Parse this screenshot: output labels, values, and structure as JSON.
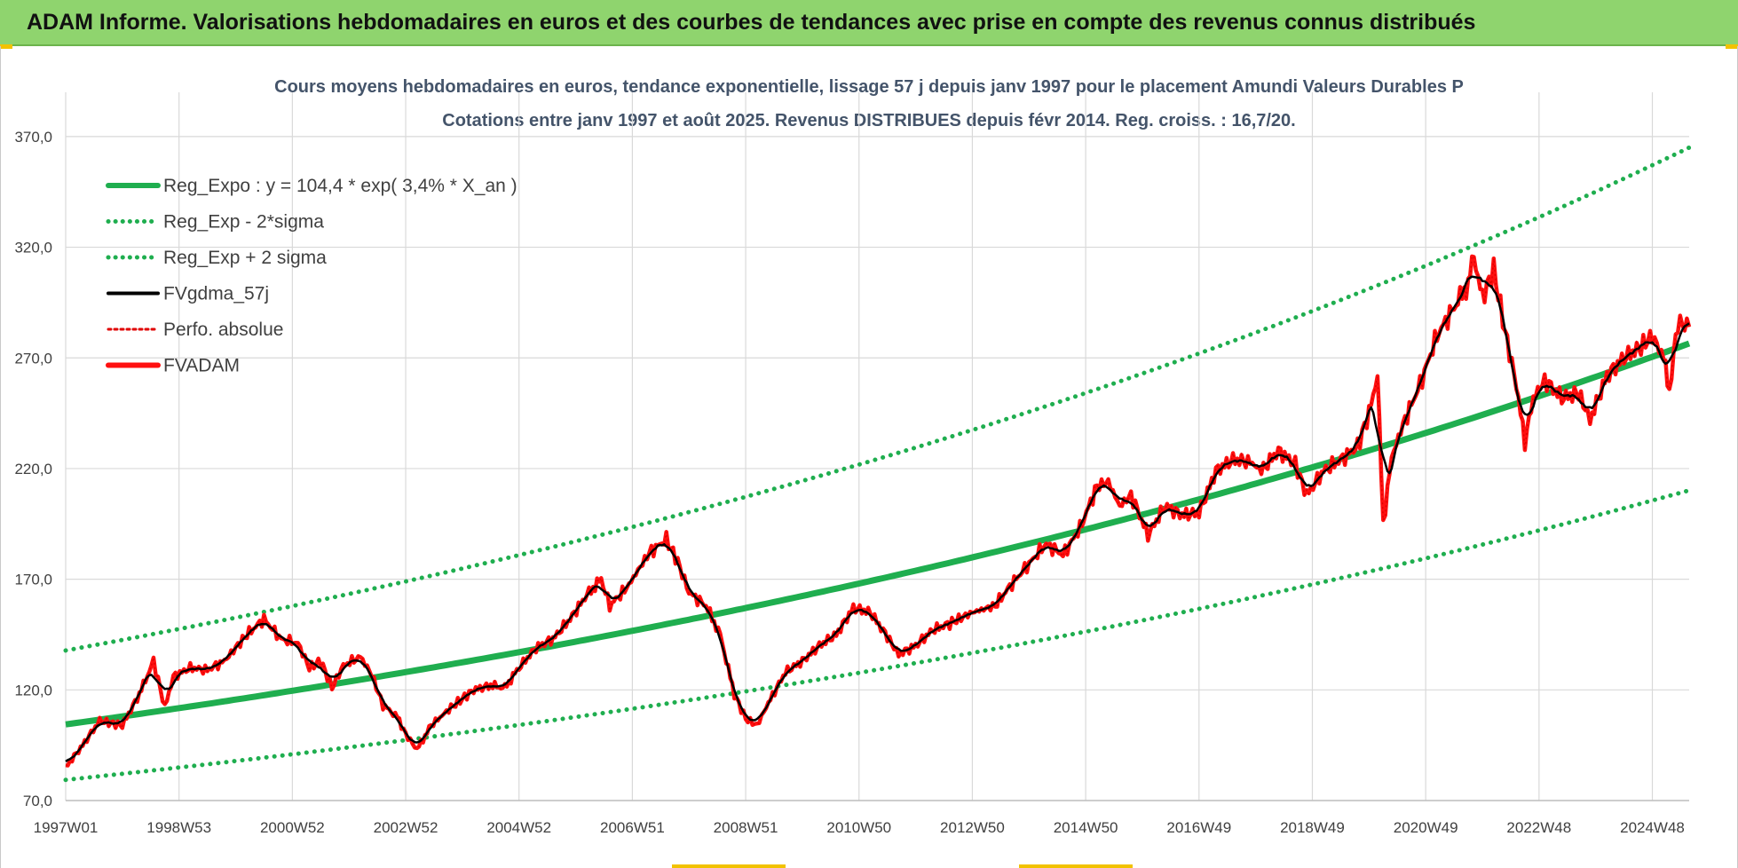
{
  "banner": {
    "title": "ADAM Informe. Valorisations hebdomadaires en euros et des courbes de tendances avec prise en compte des revenus connus distribués"
  },
  "colors": {
    "banner_bg": "#8fd46e",
    "regression": "#1fae4f",
    "sigma_bands": "#1fae4f",
    "smoothed": "#000000",
    "performance": "#e00000",
    "price": "#ff1010",
    "grid": "#d9d9d9"
  },
  "chart_data": {
    "type": "line",
    "title_line1": "Cours moyens hebdomadaires en euros, tendance exponentielle, lissage 57 j depuis janv 1997 pour le placement Amundi Valeurs Durables P",
    "title_line2": "Cotations entre janv 1997 et août 2025.  Revenus DISTRIBUES depuis févr 2014.  Reg. croiss. : 16,7/20.",
    "xlabel": "",
    "ylabel": "",
    "x_range_years": [
      1997.0,
      2025.65
    ],
    "ylim": [
      70,
      390
    ],
    "y_ticks": [
      70,
      120,
      170,
      220,
      270,
      320,
      370
    ],
    "y_tick_labels": [
      "70,0",
      "120,0",
      "170,0",
      "220,0",
      "270,0",
      "320,0",
      "370,0"
    ],
    "x_tick_labels": [
      "1997W01",
      "1998W53",
      "2000W52",
      "2002W52",
      "2004W52",
      "2006W51",
      "2008W51",
      "2010W50",
      "2012W50",
      "2014W50",
      "2016W49",
      "2018W49",
      "2020W49",
      "2022W48",
      "2024W48"
    ],
    "x_tick_years": [
      1997.0,
      1999.0,
      2001.0,
      2003.0,
      2005.0,
      2007.0,
      2009.0,
      2011.0,
      2013.0,
      2015.0,
      2017.0,
      2019.0,
      2021.0,
      2023.0,
      2025.0
    ],
    "grid": true,
    "legend_position": "top-left",
    "regression": {
      "a": 104.4,
      "rate": 0.034,
      "minus_2sigma_factor": 0.76,
      "plus_2sigma_factor": 1.32
    },
    "series": [
      {
        "name": "Reg_Expo : y = 104,4 * exp( 3,4% *  X_an )",
        "style": "solid-thick",
        "color": "#1fae4f"
      },
      {
        "name": "Reg_Exp - 2*sigma",
        "style": "dotted",
        "color": "#1fae4f"
      },
      {
        "name": "Reg_Exp + 2 sigma",
        "style": "dotted",
        "color": "#1fae4f"
      },
      {
        "name": "FVgdma_57j",
        "style": "solid",
        "color": "#000000"
      },
      {
        "name": "Perfo. absolue",
        "style": "dotted",
        "color": "#e00000"
      },
      {
        "name": "FVADAM",
        "style": "solid-thick",
        "color": "#ff1010"
      }
    ],
    "fvadam_points": [
      [
        1997.0,
        85
      ],
      [
        1997.3,
        95
      ],
      [
        1997.6,
        106
      ],
      [
        1998.0,
        104
      ],
      [
        1998.3,
        118
      ],
      [
        1998.55,
        133
      ],
      [
        1998.75,
        112
      ],
      [
        1998.9,
        126
      ],
      [
        1999.2,
        130
      ],
      [
        1999.5,
        129
      ],
      [
        1999.8,
        133
      ],
      [
        2000.2,
        145
      ],
      [
        2000.5,
        152
      ],
      [
        2000.8,
        143
      ],
      [
        2001.1,
        141
      ],
      [
        2001.3,
        130
      ],
      [
        2001.5,
        133
      ],
      [
        2001.7,
        121
      ],
      [
        2001.9,
        131
      ],
      [
        2002.2,
        135
      ],
      [
        2002.4,
        127
      ],
      [
        2002.6,
        113
      ],
      [
        2002.85,
        108
      ],
      [
        2003.0,
        100
      ],
      [
        2003.2,
        93
      ],
      [
        2003.45,
        104
      ],
      [
        2003.8,
        112
      ],
      [
        2004.2,
        120
      ],
      [
        2004.5,
        122
      ],
      [
        2004.75,
        121
      ],
      [
        2005.0,
        130
      ],
      [
        2005.3,
        139
      ],
      [
        2005.6,
        143
      ],
      [
        2005.9,
        152
      ],
      [
        2006.2,
        163
      ],
      [
        2006.45,
        170
      ],
      [
        2006.6,
        158
      ],
      [
        2006.9,
        166
      ],
      [
        2007.3,
        182
      ],
      [
        2007.6,
        188
      ],
      [
        2007.8,
        178
      ],
      [
        2008.0,
        164
      ],
      [
        2008.3,
        158
      ],
      [
        2008.55,
        145
      ],
      [
        2008.8,
        118
      ],
      [
        2009.0,
        107
      ],
      [
        2009.2,
        104
      ],
      [
        2009.4,
        114
      ],
      [
        2009.7,
        128
      ],
      [
        2010.0,
        133
      ],
      [
        2010.3,
        140
      ],
      [
        2010.6,
        145
      ],
      [
        2010.9,
        157
      ],
      [
        2011.2,
        155
      ],
      [
        2011.5,
        144
      ],
      [
        2011.7,
        136
      ],
      [
        2012.0,
        140
      ],
      [
        2012.3,
        147
      ],
      [
        2012.6,
        150
      ],
      [
        2013.0,
        155
      ],
      [
        2013.4,
        158
      ],
      [
        2013.7,
        168
      ],
      [
        2014.0,
        177
      ],
      [
        2014.3,
        186
      ],
      [
        2014.6,
        181
      ],
      [
        2014.9,
        193
      ],
      [
        2015.2,
        212
      ],
      [
        2015.4,
        214
      ],
      [
        2015.6,
        203
      ],
      [
        2015.8,
        208
      ],
      [
        2016.1,
        190
      ],
      [
        2016.4,
        203
      ],
      [
        2016.7,
        199
      ],
      [
        2017.0,
        200
      ],
      [
        2017.3,
        219
      ],
      [
        2017.6,
        224
      ],
      [
        2017.9,
        223
      ],
      [
        2018.1,
        219
      ],
      [
        2018.4,
        228
      ],
      [
        2018.7,
        222
      ],
      [
        2018.9,
        208
      ],
      [
        2019.2,
        219
      ],
      [
        2019.5,
        224
      ],
      [
        2019.8,
        230
      ],
      [
        2020.0,
        245
      ],
      [
        2020.15,
        262
      ],
      [
        2020.25,
        195
      ],
      [
        2020.4,
        225
      ],
      [
        2020.6,
        240
      ],
      [
        2020.9,
        258
      ],
      [
        2021.2,
        280
      ],
      [
        2021.5,
        293
      ],
      [
        2021.75,
        303
      ],
      [
        2021.85,
        316
      ],
      [
        2022.0,
        297
      ],
      [
        2022.2,
        310
      ],
      [
        2022.4,
        282
      ],
      [
        2022.6,
        258
      ],
      [
        2022.75,
        232
      ],
      [
        2022.9,
        252
      ],
      [
        2023.1,
        260
      ],
      [
        2023.4,
        252
      ],
      [
        2023.7,
        254
      ],
      [
        2023.9,
        242
      ],
      [
        2024.2,
        262
      ],
      [
        2024.5,
        270
      ],
      [
        2024.8,
        275
      ],
      [
        2025.0,
        280
      ],
      [
        2025.2,
        270
      ],
      [
        2025.3,
        255
      ],
      [
        2025.45,
        286
      ],
      [
        2025.65,
        284
      ]
    ]
  }
}
